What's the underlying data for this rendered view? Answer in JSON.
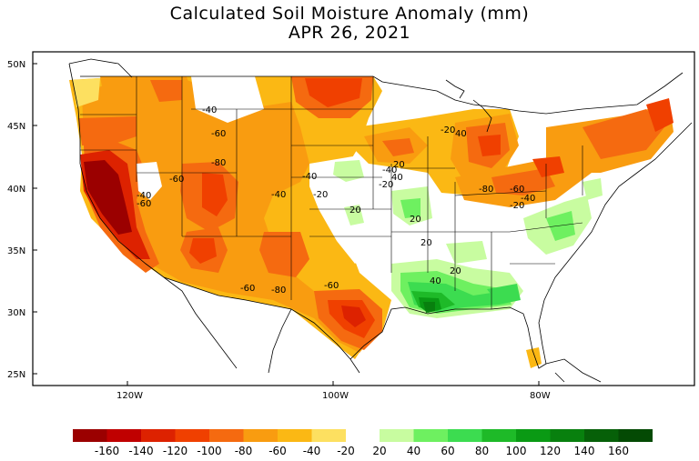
{
  "title": "Calculated Soil Moisture Anomaly (mm)",
  "date": "APR 26, 2021",
  "lat_labels": [
    "50N",
    "45N",
    "40N",
    "35N",
    "30N",
    "25N"
  ],
  "lon_labels": [
    "120W",
    "100W",
    "80W"
  ],
  "contour_labels": [
    "-40",
    "-60",
    "-80",
    "-60",
    "-40",
    "-60",
    "-40",
    "-40",
    "-20",
    "-40",
    "-20",
    "20",
    "20",
    "20",
    "40",
    "-20",
    "40",
    "-80",
    "-60",
    "-40",
    "-20",
    "-60",
    "-80",
    "-60",
    "20",
    "40",
    "20"
  ],
  "colorbar": {
    "negative_colors": [
      "#9b0000",
      "#c00000",
      "#dd2200",
      "#f04000",
      "#f56a10",
      "#f99c10",
      "#fbb814",
      "#fde060"
    ],
    "positive_colors": [
      "#c8fca0",
      "#6ef060",
      "#3cdc50",
      "#1eba28",
      "#0a9a14",
      "#08800e",
      "#066008",
      "#044a04"
    ],
    "negative_ticks": [
      "-160",
      "-140",
      "-120",
      "-100",
      "-80",
      "-60",
      "-40",
      "-20"
    ],
    "positive_ticks": [
      "20",
      "40",
      "60",
      "80",
      "100",
      "120",
      "140",
      "160"
    ]
  }
}
